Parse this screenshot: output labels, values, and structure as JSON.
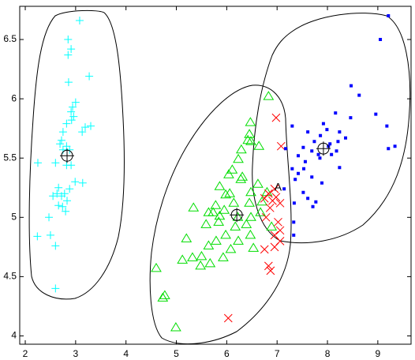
{
  "chart_data": {
    "type": "scatter",
    "xlim": [
      1.89,
      9.66
    ],
    "ylim": [
      3.93,
      6.78
    ],
    "xticks": [
      2,
      3,
      4,
      5,
      6,
      7,
      8,
      9
    ],
    "yticks": [
      4,
      4.5,
      5,
      5.5,
      6,
      6.5
    ],
    "series": [
      {
        "marker": "plus",
        "color": "#00ffff",
        "x": [
          3.08,
          2.85,
          2.91,
          2.85,
          3.27,
          2.86,
          3.0,
          2.94,
          2.91,
          2.96,
          2.92,
          2.82,
          3.19,
          3.3,
          3.13,
          2.75,
          2.72,
          2.69,
          2.82,
          2.75,
          2.88,
          2.25,
          2.6,
          2.91,
          2.82,
          3.14,
          2.99,
          2.66,
          2.88,
          2.63,
          2.72,
          2.78,
          2.55,
          2.83,
          2.66,
          2.74,
          2.47,
          2.8,
          2.24,
          2.5,
          2.6,
          2.6
        ],
        "y": [
          6.66,
          6.5,
          6.42,
          6.37,
          6.19,
          6.14,
          5.97,
          5.93,
          5.89,
          5.85,
          5.82,
          5.79,
          5.76,
          5.77,
          5.72,
          5.72,
          5.65,
          5.62,
          5.6,
          5.57,
          5.57,
          5.46,
          5.46,
          5.44,
          5.44,
          5.29,
          5.3,
          5.25,
          5.24,
          5.2,
          5.18,
          5.2,
          5.18,
          5.14,
          5.1,
          5.09,
          5.0,
          5.05,
          4.84,
          4.85,
          4.76,
          4.4
        ]
      },
      {
        "marker": "triangle",
        "color": "#00dd00",
        "x": [
          6.83,
          6.47,
          6.45,
          6.64,
          6.42,
          6.48,
          6.29,
          6.23,
          6.11,
          6.31,
          6.04,
          6.62,
          6.28,
          5.86,
          6.48,
          6.8,
          6.06,
          6.7,
          6.45,
          5.98,
          5.34,
          5.78,
          5.73,
          5.95,
          6.14,
          5.64,
          5.86,
          6.22,
          6.67,
          5.59,
          5.84,
          6.48,
          6.39,
          6.17,
          6.47,
          6.89,
          5.98,
          5.2,
          5.79,
          6.23,
          5.64,
          6.08,
          6.53,
          5.5,
          5.32,
          5.67,
          5.48,
          4.6,
          5.93,
          5.12,
          4.77,
          4.73,
          4.99
        ],
        "y": [
          6.02,
          5.8,
          5.7,
          5.6,
          5.65,
          5.64,
          5.57,
          5.49,
          5.4,
          5.34,
          5.36,
          5.28,
          5.32,
          5.26,
          5.21,
          5.21,
          5.2,
          5.13,
          5.12,
          5.19,
          5.08,
          5.1,
          5.04,
          5.06,
          5.12,
          5.04,
          5.01,
          5.0,
          5.04,
          4.94,
          4.96,
          5.0,
          4.94,
          4.92,
          4.85,
          4.92,
          4.85,
          4.82,
          4.8,
          4.8,
          4.76,
          4.73,
          4.74,
          4.67,
          4.66,
          4.61,
          4.59,
          4.57,
          4.66,
          4.64,
          4.34,
          4.32,
          4.07
        ]
      },
      {
        "marker": "cross",
        "color": "#ff0000",
        "x": [
          6.98,
          7.08,
          6.83,
          6.95,
          6.75,
          6.91,
          6.98,
          7.06,
          6.86,
          6.78,
          7.02,
          7.06,
          6.95,
          7.06,
          6.75,
          6.95,
          6.83,
          6.87,
          6.03
        ],
        "y": [
          5.84,
          5.6,
          5.2,
          5.24,
          5.16,
          5.14,
          5.17,
          5.12,
          5.08,
          5.0,
          4.96,
          4.89,
          4.85,
          4.8,
          4.73,
          4.75,
          4.59,
          4.55,
          4.15
        ]
      },
      {
        "marker": "dot",
        "color": "#0000ff",
        "x": [
          9.21,
          9.05,
          8.47,
          8.63,
          8.16,
          8.46,
          8.96,
          7.3,
          7.61,
          7.92,
          7.86,
          7.99,
          8.24,
          8.36,
          7.74,
          8.05,
          8.21,
          7.17,
          7.52,
          7.69,
          8.18,
          9.21,
          9.34,
          7.42,
          7.82,
          8.02,
          7.85,
          8.08,
          7.56,
          7.3,
          7.53,
          7.42,
          7.69,
          7.89,
          8.24,
          7.36,
          7.52,
          7.14,
          7.61,
          7.77,
          7.34,
          7.71,
          7.33,
          7.33,
          9.18
        ],
        "y": [
          6.7,
          6.5,
          6.11,
          6.03,
          5.88,
          5.84,
          5.87,
          5.77,
          5.72,
          5.79,
          5.69,
          5.74,
          5.72,
          5.67,
          5.64,
          5.62,
          5.64,
          5.58,
          5.59,
          5.56,
          5.56,
          5.58,
          5.6,
          5.52,
          5.53,
          5.6,
          5.5,
          5.53,
          5.47,
          5.41,
          5.41,
          5.37,
          5.34,
          5.29,
          5.42,
          5.32,
          5.21,
          5.24,
          5.16,
          5.13,
          5.12,
          5.09,
          4.96,
          4.85,
          5.77
        ]
      },
      {
        "marker": "circle-plus",
        "color": "#000000",
        "x": [
          2.83,
          6.2,
          7.92
        ],
        "y": [
          5.52,
          5.02,
          5.58
        ]
      }
    ],
    "annotations": [
      {
        "text": "A",
        "x": 7.02,
        "y": 5.25
      }
    ]
  }
}
